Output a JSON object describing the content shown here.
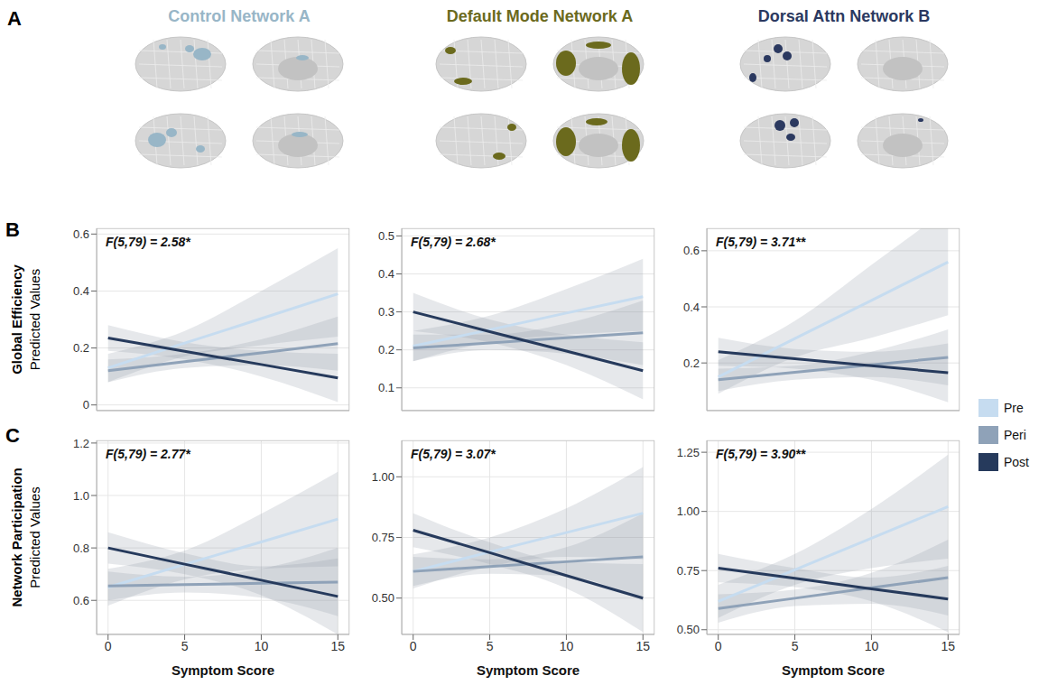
{
  "panel_labels": [
    "A",
    "B",
    "C"
  ],
  "networks": [
    {
      "name": "Control Network A",
      "color": "#98b6c7"
    },
    {
      "name": "Default Mode Network A",
      "color": "#6b6a1d"
    },
    {
      "name": "Dorsal Attn Network B",
      "color": "#2b3960"
    }
  ],
  "row_titles": [
    {
      "title": "Global Efficiency",
      "subtitle": "Predicted Values"
    },
    {
      "title": "Network Participation",
      "subtitle": "Predicted Values"
    }
  ],
  "legend": "right",
  "chart_data": [
    {
      "type": "line",
      "annotation": "F(5,79) = 2.58*",
      "tick_labels": "y",
      "grid": true,
      "x": [
        0,
        5,
        10,
        15
      ],
      "xlim": [
        -0.75,
        15.75
      ],
      "xticks": [
        0,
        5,
        10,
        15
      ],
      "ylim": [
        -0.02,
        0.62
      ],
      "yticks": [
        0,
        0.2,
        0.4,
        0.6
      ],
      "series": [
        {
          "name": "Pre",
          "color": "#c6dcf0",
          "values": [
            0.13,
            0.217,
            0.303,
            0.39
          ],
          "ci_lower": [
            0.08,
            0.17,
            0.21,
            0.24
          ],
          "ci_upper": [
            0.18,
            0.26,
            0.4,
            0.55
          ]
        },
        {
          "name": "Peri",
          "color": "#8fa2b8",
          "values": [
            0.12,
            0.152,
            0.183,
            0.215
          ],
          "ci_lower": [
            0.08,
            0.13,
            0.14,
            0.12
          ],
          "ci_upper": [
            0.16,
            0.18,
            0.23,
            0.31
          ]
        },
        {
          "name": "Post",
          "color": "#263a5c",
          "values": [
            0.235,
            0.188,
            0.142,
            0.095
          ],
          "ci_lower": [
            0.19,
            0.16,
            0.1,
            0.01
          ],
          "ci_upper": [
            0.28,
            0.22,
            0.19,
            0.18
          ]
        }
      ]
    },
    {
      "type": "line",
      "annotation": "F(5,79) = 2.68*",
      "tick_labels": "y",
      "grid": true,
      "x": [
        0,
        5,
        10,
        15
      ],
      "xlim": [
        -0.75,
        15.75
      ],
      "xticks": [
        0,
        5,
        10,
        15
      ],
      "ylim": [
        0.04,
        0.52
      ],
      "yticks": [
        0.1,
        0.2,
        0.3,
        0.4,
        0.5
      ],
      "series": [
        {
          "name": "Pre",
          "color": "#c6dcf0",
          "values": [
            0.21,
            0.253,
            0.297,
            0.34
          ],
          "ci_lower": [
            0.17,
            0.22,
            0.24,
            0.25
          ],
          "ci_upper": [
            0.25,
            0.29,
            0.36,
            0.44
          ]
        },
        {
          "name": "Peri",
          "color": "#8fa2b8",
          "values": [
            0.205,
            0.218,
            0.232,
            0.245
          ],
          "ci_lower": [
            0.17,
            0.2,
            0.19,
            0.16
          ],
          "ci_upper": [
            0.24,
            0.24,
            0.27,
            0.33
          ]
        },
        {
          "name": "Post",
          "color": "#263a5c",
          "values": [
            0.3,
            0.248,
            0.197,
            0.145
          ],
          "ci_lower": [
            0.25,
            0.22,
            0.16,
            0.07
          ],
          "ci_upper": [
            0.35,
            0.28,
            0.24,
            0.22
          ]
        }
      ]
    },
    {
      "type": "line",
      "annotation": "F(5,79) = 3.71**",
      "tick_labels": "y",
      "grid": true,
      "x": [
        0,
        5,
        10,
        15
      ],
      "xlim": [
        -0.75,
        15.75
      ],
      "xticks": [
        0,
        5,
        10,
        15
      ],
      "ylim": [
        0.03,
        0.68
      ],
      "yticks": [
        0.2,
        0.4,
        0.6
      ],
      "series": [
        {
          "name": "Pre",
          "color": "#c6dcf0",
          "values": [
            0.15,
            0.287,
            0.423,
            0.56
          ],
          "ci_lower": [
            0.09,
            0.22,
            0.29,
            0.37
          ],
          "ci_upper": [
            0.21,
            0.35,
            0.55,
            0.75
          ]
        },
        {
          "name": "Peri",
          "color": "#8fa2b8",
          "values": [
            0.14,
            0.167,
            0.193,
            0.22
          ],
          "ci_lower": [
            0.1,
            0.14,
            0.15,
            0.12
          ],
          "ci_upper": [
            0.18,
            0.19,
            0.24,
            0.32
          ]
        },
        {
          "name": "Post",
          "color": "#263a5c",
          "values": [
            0.24,
            0.215,
            0.19,
            0.165
          ],
          "ci_lower": [
            0.19,
            0.18,
            0.14,
            0.06
          ],
          "ci_upper": [
            0.29,
            0.25,
            0.24,
            0.27
          ]
        }
      ]
    },
    {
      "type": "line",
      "annotation": "F(5,79) = 2.77*",
      "x_label": "Symptom Score",
      "grid": true,
      "x": [
        0,
        5,
        10,
        15
      ],
      "xlim": [
        -0.75,
        15.75
      ],
      "xticks": [
        0,
        5,
        10,
        15
      ],
      "ylim": [
        0.47,
        1.21
      ],
      "yticks": [
        0.6,
        0.8,
        {
          "value": 1,
          "label": "1.0"
        },
        1.2
      ],
      "series": [
        {
          "name": "Pre",
          "color": "#c6dcf0",
          "values": [
            0.65,
            0.737,
            0.823,
            0.91
          ],
          "ci_lower": [
            0.58,
            0.68,
            0.72,
            0.73
          ],
          "ci_upper": [
            0.72,
            0.79,
            0.93,
            1.09
          ]
        },
        {
          "name": "Peri",
          "color": "#8fa2b8",
          "values": [
            0.655,
            0.66,
            0.665,
            0.67
          ],
          "ci_lower": [
            0.6,
            0.63,
            0.61,
            0.54
          ],
          "ci_upper": [
            0.71,
            0.69,
            0.72,
            0.8
          ]
        },
        {
          "name": "Post",
          "color": "#263a5c",
          "values": [
            0.8,
            0.738,
            0.677,
            0.615
          ],
          "ci_lower": [
            0.74,
            0.7,
            0.62,
            0.47
          ],
          "ci_upper": [
            0.86,
            0.78,
            0.73,
            0.76
          ]
        }
      ]
    },
    {
      "type": "line",
      "annotation": "F(5,79) = 3.07*",
      "x_label": "Symptom Score",
      "grid": true,
      "x": [
        0,
        5,
        10,
        15
      ],
      "xlim": [
        -0.75,
        15.75
      ],
      "xticks": [
        0,
        5,
        10,
        15
      ],
      "ylim": [
        0.35,
        1.15
      ],
      "yticks": [
        {
          "value": 0.5,
          "label": "0.50"
        },
        0.75,
        {
          "value": 1,
          "label": "1.00"
        }
      ],
      "series": [
        {
          "name": "Pre",
          "color": "#c6dcf0",
          "values": [
            0.61,
            0.69,
            0.77,
            0.85
          ],
          "ci_lower": [
            0.54,
            0.63,
            0.67,
            0.66
          ],
          "ci_upper": [
            0.68,
            0.75,
            0.87,
            1.04
          ]
        },
        {
          "name": "Peri",
          "color": "#8fa2b8",
          "values": [
            0.61,
            0.63,
            0.65,
            0.67
          ],
          "ci_lower": [
            0.55,
            0.6,
            0.59,
            0.49
          ],
          "ci_upper": [
            0.67,
            0.66,
            0.71,
            0.85
          ]
        },
        {
          "name": "Post",
          "color": "#263a5c",
          "values": [
            0.78,
            0.687,
            0.593,
            0.5
          ],
          "ci_lower": [
            0.71,
            0.64,
            0.54,
            0.36
          ],
          "ci_upper": [
            0.85,
            0.73,
            0.65,
            0.64
          ]
        }
      ]
    },
    {
      "type": "line",
      "annotation": "F(5,79) = 3.90**",
      "x_label": "Symptom Score",
      "grid": true,
      "x": [
        0,
        5,
        10,
        15
      ],
      "xlim": [
        -0.75,
        15.75
      ],
      "xticks": [
        0,
        5,
        10,
        15
      ],
      "ylim": [
        0.48,
        1.3
      ],
      "yticks": [
        {
          "value": 0.5,
          "label": "0.50"
        },
        0.75,
        {
          "value": 1,
          "label": "1.00"
        },
        1.25
      ],
      "series": [
        {
          "name": "Pre",
          "color": "#c6dcf0",
          "values": [
            0.62,
            0.753,
            0.887,
            1.02
          ],
          "ci_lower": [
            0.55,
            0.69,
            0.76,
            0.8
          ],
          "ci_upper": [
            0.69,
            0.82,
            1.01,
            1.24
          ]
        },
        {
          "name": "Peri",
          "color": "#8fa2b8",
          "values": [
            0.59,
            0.633,
            0.677,
            0.72
          ],
          "ci_lower": [
            0.53,
            0.6,
            0.61,
            0.56
          ],
          "ci_upper": [
            0.65,
            0.67,
            0.74,
            0.88
          ]
        },
        {
          "name": "Post",
          "color": "#263a5c",
          "values": [
            0.76,
            0.717,
            0.673,
            0.63
          ],
          "ci_lower": [
            0.7,
            0.68,
            0.62,
            0.49
          ],
          "ci_upper": [
            0.82,
            0.76,
            0.72,
            0.77
          ]
        }
      ]
    }
  ]
}
